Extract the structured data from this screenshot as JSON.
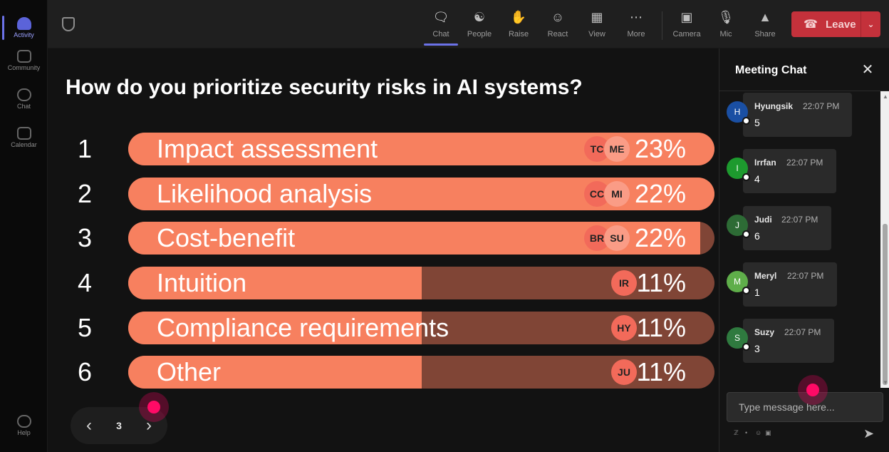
{
  "rail": {
    "items": [
      {
        "label": "Activity",
        "icon": "bell-icon",
        "active": true
      },
      {
        "label": "Community",
        "icon": "community-icon",
        "active": false
      },
      {
        "label": "Chat",
        "icon": "chat-icon",
        "active": false
      },
      {
        "label": "Calendar",
        "icon": "calendar-icon",
        "active": false
      }
    ],
    "help": {
      "label": "Help",
      "icon": "help-icon"
    }
  },
  "toolbar": {
    "buttons": [
      {
        "label": "Chat",
        "icon": "chat-icon",
        "active": true
      },
      {
        "label": "People",
        "icon": "people-icon",
        "active": false
      },
      {
        "label": "Raise",
        "icon": "raise-hand-icon",
        "active": false
      },
      {
        "label": "React",
        "icon": "react-icon",
        "active": false
      },
      {
        "label": "View",
        "icon": "view-icon",
        "active": false
      },
      {
        "label": "More",
        "icon": "more-icon",
        "active": false
      },
      {
        "label": "Camera",
        "icon": "camera-off-icon",
        "active": false
      },
      {
        "label": "Mic",
        "icon": "mic-icon",
        "active": false
      },
      {
        "label": "Share",
        "icon": "share-icon",
        "active": false
      }
    ],
    "leave_label": "Leave"
  },
  "poll": {
    "question": "How do you prioritize security risks in AI systems?",
    "options": [
      {
        "rank": "1",
        "label": "Impact assessment",
        "percent": "23%",
        "fill": 1.0,
        "avatars": [
          "TC",
          "ME"
        ]
      },
      {
        "rank": "2",
        "label": "Likelihood analysis",
        "percent": "22%",
        "fill": 1.0,
        "avatars": [
          "CC",
          "MI"
        ]
      },
      {
        "rank": "3",
        "label": "Cost-benefit",
        "percent": "22%",
        "fill": 0.976,
        "avatars": [
          "BR",
          "SU"
        ]
      },
      {
        "rank": "4",
        "label": "Intuition",
        "percent": "11%",
        "fill": 0.5,
        "avatars": [
          "IR"
        ]
      },
      {
        "rank": "5",
        "label": "Compliance requirements",
        "percent": "11%",
        "fill": 0.5,
        "avatars": [
          "HY"
        ]
      },
      {
        "rank": "6",
        "label": "Other",
        "percent": "11%",
        "fill": 0.5,
        "avatars": [
          "JU"
        ]
      }
    ],
    "colors": {
      "fill": "#f7805f",
      "track": "#804536"
    }
  },
  "pager": {
    "page": "3"
  },
  "chat": {
    "title": "Meeting Chat",
    "messages": [
      {
        "initial": "H",
        "name": "Hyungsik",
        "time": "22:07 PM",
        "text": "5",
        "color": "#1a4fa3"
      },
      {
        "initial": "I",
        "name": "Irrfan",
        "time": "22:07 PM",
        "text": "4",
        "color": "#1d9a2e"
      },
      {
        "initial": "J",
        "name": "Judi",
        "time": "22:07 PM",
        "text": "6",
        "color": "#2d6b35"
      },
      {
        "initial": "M",
        "name": "Meryl",
        "time": "22:07 PM",
        "text": "1",
        "color": "#5fae4a"
      },
      {
        "initial": "S",
        "name": "Suzy",
        "time": "22:07 PM",
        "text": "3",
        "color": "#2f7a3f"
      }
    ],
    "input_placeholder": "Type message here..."
  }
}
